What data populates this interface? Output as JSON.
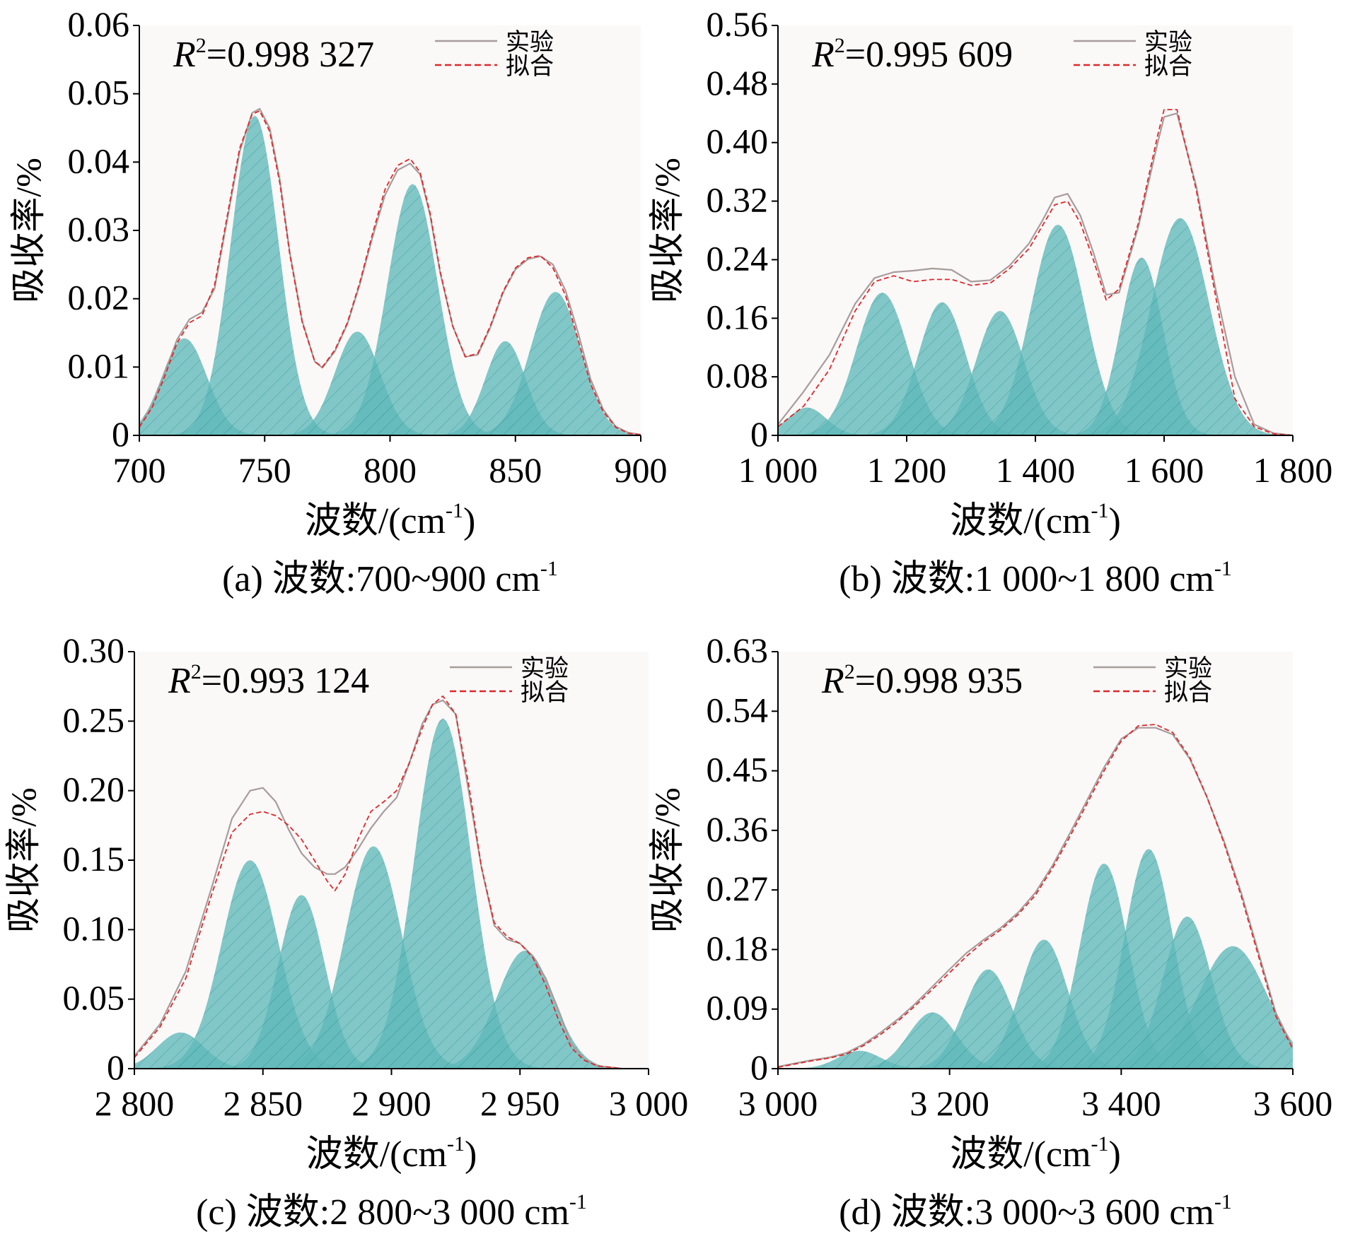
{
  "chart_data": [
    {
      "id": "a",
      "type": "area",
      "caption": "(a) 波数:700~900 cm",
      "caption_sup": "-1",
      "xlabel": "波数/(cm",
      "xlabel_sup": "-1",
      "xlabel_end": ")",
      "ylabel": "吸收率/%",
      "r2_text": "=0.998 327",
      "legend": {
        "exp": "实验",
        "fit": "拟合"
      },
      "xlim": [
        700,
        900
      ],
      "ylim": [
        0,
        0.06
      ],
      "xticks": [
        700,
        750,
        800,
        850,
        900
      ],
      "xtick_labels": [
        "700",
        "750",
        "800",
        "850",
        "900"
      ],
      "yticks": [
        0,
        0.01,
        0.02,
        0.03,
        0.04,
        0.05,
        0.06
      ],
      "ytick_labels": [
        "0",
        "0.01",
        "0.02",
        "0.03",
        "0.04",
        "0.05",
        "0.06"
      ],
      "peaks": [
        {
          "center": 718,
          "height": 0.0142,
          "sigma": 9
        },
        {
          "center": 746,
          "height": 0.0468,
          "sigma": 9.5
        },
        {
          "center": 787,
          "height": 0.0152,
          "sigma": 9
        },
        {
          "center": 809,
          "height": 0.0368,
          "sigma": 10
        },
        {
          "center": 846,
          "height": 0.0138,
          "sigma": 8
        },
        {
          "center": 866,
          "height": 0.021,
          "sigma": 10
        }
      ],
      "fit_curve": {
        "x": [
          700,
          705,
          710,
          715,
          720,
          725,
          730,
          735,
          740,
          745,
          748,
          752,
          756,
          760,
          765,
          770,
          773,
          778,
          783,
          788,
          793,
          798,
          803,
          808,
          812,
          816,
          820,
          825,
          830,
          835,
          840,
          845,
          850,
          855,
          860,
          865,
          870,
          875,
          880,
          885,
          890,
          895,
          900
        ],
        "y": [
          0.0012,
          0.004,
          0.0085,
          0.0135,
          0.0165,
          0.0175,
          0.022,
          0.032,
          0.042,
          0.047,
          0.0475,
          0.0445,
          0.037,
          0.0265,
          0.0165,
          0.0108,
          0.01,
          0.0125,
          0.0165,
          0.0225,
          0.0295,
          0.036,
          0.0395,
          0.0405,
          0.0385,
          0.0325,
          0.024,
          0.016,
          0.0115,
          0.012,
          0.016,
          0.021,
          0.0245,
          0.026,
          0.0263,
          0.0245,
          0.0205,
          0.014,
          0.0075,
          0.0035,
          0.0012,
          0.0003,
          0.0001
        ]
      },
      "exp_curve": {
        "x": [
          700,
          705,
          710,
          715,
          720,
          725,
          730,
          735,
          740,
          745,
          748,
          752,
          756,
          760,
          765,
          770,
          773,
          778,
          783,
          788,
          793,
          798,
          803,
          808,
          812,
          816,
          820,
          825,
          830,
          835,
          840,
          845,
          850,
          855,
          860,
          865,
          870,
          875,
          880,
          885,
          890,
          895,
          900
        ],
        "y": [
          0.0013,
          0.0043,
          0.009,
          0.014,
          0.017,
          0.018,
          0.0215,
          0.0315,
          0.0415,
          0.0472,
          0.0478,
          0.045,
          0.0375,
          0.0268,
          0.0167,
          0.0108,
          0.0099,
          0.0123,
          0.0163,
          0.0222,
          0.029,
          0.0352,
          0.0388,
          0.0398,
          0.0382,
          0.0322,
          0.0238,
          0.016,
          0.0115,
          0.0118,
          0.0158,
          0.0208,
          0.0243,
          0.0258,
          0.0262,
          0.025,
          0.0212,
          0.015,
          0.0082,
          0.0038,
          0.0013,
          0.0004,
          0.0001
        ]
      }
    },
    {
      "id": "b",
      "type": "area",
      "caption": "(b) 波数:1 000~1 800 cm",
      "caption_sup": "-1",
      "xlabel": "波数/(cm",
      "xlabel_sup": "-1",
      "xlabel_end": ")",
      "ylabel": "吸收率/%",
      "r2_text": "=0.995 609",
      "legend": {
        "exp": "实验",
        "fit": "拟合"
      },
      "xlim": [
        1000,
        1800
      ],
      "ylim": [
        0,
        0.56
      ],
      "xticks": [
        1000,
        1200,
        1400,
        1600,
        1800
      ],
      "xtick_labels": [
        "1 000",
        "1 200",
        "1 400",
        "1 600",
        "1 800"
      ],
      "yticks": [
        0,
        0.08,
        0.16,
        0.24,
        0.32,
        0.4,
        0.48,
        0.56
      ],
      "ytick_labels": [
        "0",
        "0.08",
        "0.16",
        "0.24",
        "0.32",
        "0.40",
        "0.48",
        "0.56"
      ],
      "peaks": [
        {
          "center": 1045,
          "height": 0.038,
          "sigma": 30
        },
        {
          "center": 1162,
          "height": 0.195,
          "sigma": 40
        },
        {
          "center": 1255,
          "height": 0.182,
          "sigma": 37
        },
        {
          "center": 1345,
          "height": 0.17,
          "sigma": 37
        },
        {
          "center": 1435,
          "height": 0.288,
          "sigma": 42
        },
        {
          "center": 1565,
          "height": 0.243,
          "sigma": 33
        },
        {
          "center": 1625,
          "height": 0.297,
          "sigma": 45
        }
      ],
      "fit_curve": {
        "x": [
          1000,
          1040,
          1080,
          1120,
          1150,
          1180,
          1210,
          1240,
          1270,
          1300,
          1330,
          1360,
          1390,
          1410,
          1430,
          1450,
          1470,
          1490,
          1510,
          1530,
          1560,
          1590,
          1600,
          1620,
          1650,
          1680,
          1710,
          1740,
          1770,
          1800
        ],
        "y": [
          0.012,
          0.04,
          0.09,
          0.17,
          0.21,
          0.218,
          0.21,
          0.213,
          0.213,
          0.205,
          0.208,
          0.228,
          0.255,
          0.285,
          0.315,
          0.32,
          0.29,
          0.24,
          0.185,
          0.2,
          0.29,
          0.41,
          0.445,
          0.445,
          0.335,
          0.19,
          0.05,
          0.012,
          0.002,
          0.0
        ]
      },
      "exp_curve": {
        "x": [
          1000,
          1040,
          1080,
          1120,
          1150,
          1180,
          1210,
          1240,
          1270,
          1300,
          1330,
          1360,
          1390,
          1410,
          1430,
          1450,
          1470,
          1490,
          1510,
          1530,
          1560,
          1590,
          1600,
          1620,
          1650,
          1680,
          1710,
          1740,
          1770,
          1800
        ],
        "y": [
          0.015,
          0.06,
          0.11,
          0.18,
          0.215,
          0.223,
          0.225,
          0.228,
          0.226,
          0.21,
          0.212,
          0.232,
          0.262,
          0.292,
          0.325,
          0.33,
          0.3,
          0.25,
          0.192,
          0.195,
          0.285,
          0.4,
          0.435,
          0.44,
          0.34,
          0.2,
          0.08,
          0.015,
          0.003,
          0.0
        ]
      }
    },
    {
      "id": "c",
      "type": "area",
      "caption": "(c) 波数:2 800~3 000 cm",
      "caption_sup": "-1",
      "xlabel": "波数/(cm",
      "xlabel_sup": "-1",
      "xlabel_end": ")",
      "ylabel": "吸收率/%",
      "r2_text": "=0.993 124",
      "legend": {
        "exp": "实验",
        "fit": "拟合"
      },
      "xlim": [
        2800,
        3000
      ],
      "ylim": [
        0,
        0.3
      ],
      "xticks": [
        2800,
        2850,
        2900,
        2950,
        3000
      ],
      "xtick_labels": [
        "2 800",
        "2 850",
        "2 900",
        "2 950",
        "3 000"
      ],
      "yticks": [
        0,
        0.05,
        0.1,
        0.15,
        0.2,
        0.25,
        0.3
      ],
      "ytick_labels": [
        "0",
        "0.05",
        "0.10",
        "0.15",
        "0.20",
        "0.25",
        "0.30"
      ],
      "peaks": [
        {
          "center": 2818,
          "height": 0.026,
          "sigma": 9
        },
        {
          "center": 2845,
          "height": 0.15,
          "sigma": 11
        },
        {
          "center": 2865,
          "height": 0.125,
          "sigma": 9
        },
        {
          "center": 2893,
          "height": 0.16,
          "sigma": 11
        },
        {
          "center": 2920,
          "height": 0.252,
          "sigma": 11
        },
        {
          "center": 2952,
          "height": 0.085,
          "sigma": 11
        }
      ],
      "fit_curve": {
        "x": [
          2800,
          2810,
          2820,
          2830,
          2838,
          2845,
          2850,
          2855,
          2860,
          2865,
          2870,
          2875,
          2878,
          2882,
          2887,
          2892,
          2897,
          2902,
          2907,
          2912,
          2916,
          2920,
          2925,
          2930,
          2935,
          2940,
          2945,
          2950,
          2955,
          2960,
          2965,
          2970,
          2975,
          2980,
          2985,
          2990,
          3000
        ],
        "y": [
          0.008,
          0.03,
          0.065,
          0.125,
          0.17,
          0.183,
          0.185,
          0.182,
          0.175,
          0.165,
          0.15,
          0.135,
          0.128,
          0.14,
          0.165,
          0.185,
          0.192,
          0.2,
          0.22,
          0.245,
          0.262,
          0.268,
          0.255,
          0.205,
          0.145,
          0.105,
          0.095,
          0.09,
          0.08,
          0.06,
          0.035,
          0.015,
          0.006,
          0.002,
          0.001,
          0.0,
          0.0
        ]
      },
      "exp_curve": {
        "x": [
          2800,
          2810,
          2820,
          2830,
          2838,
          2845,
          2850,
          2855,
          2860,
          2865,
          2870,
          2875,
          2878,
          2882,
          2887,
          2892,
          2897,
          2902,
          2907,
          2912,
          2916,
          2920,
          2925,
          2930,
          2935,
          2940,
          2945,
          2950,
          2955,
          2960,
          2965,
          2970,
          2975,
          2980,
          2985,
          2990,
          3000
        ],
        "y": [
          0.009,
          0.032,
          0.07,
          0.13,
          0.18,
          0.2,
          0.202,
          0.192,
          0.172,
          0.155,
          0.145,
          0.14,
          0.14,
          0.145,
          0.158,
          0.173,
          0.185,
          0.195,
          0.22,
          0.248,
          0.262,
          0.265,
          0.255,
          0.2,
          0.145,
          0.103,
          0.093,
          0.09,
          0.081,
          0.065,
          0.042,
          0.018,
          0.007,
          0.002,
          0.001,
          0.0,
          0.0
        ]
      }
    },
    {
      "id": "d",
      "type": "area",
      "caption": "(d) 波数:3 000~3 600 cm",
      "caption_sup": "-1",
      "xlabel": "波数/(cm",
      "xlabel_sup": "-1",
      "xlabel_end": ")",
      "ylabel": "吸收率/%",
      "r2_text": "=0.998 935",
      "legend": {
        "exp": "实验",
        "fit": "拟合"
      },
      "xlim": [
        3000,
        3600
      ],
      "ylim": [
        0,
        0.63
      ],
      "xticks": [
        3000,
        3200,
        3400,
        3600
      ],
      "xtick_labels": [
        "3 000",
        "3 200",
        "3 400",
        "3 600"
      ],
      "yticks": [
        0,
        0.09,
        0.18,
        0.27,
        0.36,
        0.45,
        0.54,
        0.63
      ],
      "ytick_labels": [
        "0",
        "0.09",
        "0.18",
        "0.27",
        "0.36",
        "0.45",
        "0.54",
        "0.63"
      ],
      "peaks": [
        {
          "center": 3095,
          "height": 0.027,
          "sigma": 25
        },
        {
          "center": 3180,
          "height": 0.085,
          "sigma": 28
        },
        {
          "center": 3245,
          "height": 0.15,
          "sigma": 28
        },
        {
          "center": 3310,
          "height": 0.195,
          "sigma": 28
        },
        {
          "center": 3380,
          "height": 0.31,
          "sigma": 28
        },
        {
          "center": 3432,
          "height": 0.332,
          "sigma": 28
        },
        {
          "center": 3477,
          "height": 0.23,
          "sigma": 28
        },
        {
          "center": 3530,
          "height": 0.185,
          "sigma": 40
        }
      ],
      "fit_curve": {
        "x": [
          3000,
          3020,
          3040,
          3060,
          3080,
          3100,
          3120,
          3140,
          3160,
          3180,
          3200,
          3220,
          3240,
          3260,
          3280,
          3300,
          3320,
          3340,
          3360,
          3380,
          3400,
          3420,
          3440,
          3460,
          3480,
          3500,
          3520,
          3540,
          3560,
          3580,
          3600
        ],
        "y": [
          0.002,
          0.007,
          0.012,
          0.016,
          0.022,
          0.035,
          0.052,
          0.072,
          0.095,
          0.12,
          0.145,
          0.17,
          0.192,
          0.21,
          0.233,
          0.262,
          0.303,
          0.35,
          0.4,
          0.45,
          0.495,
          0.518,
          0.52,
          0.508,
          0.47,
          0.41,
          0.34,
          0.26,
          0.17,
          0.08,
          0.03
        ]
      },
      "exp_curve": {
        "x": [
          3000,
          3020,
          3040,
          3060,
          3080,
          3100,
          3120,
          3140,
          3160,
          3180,
          3200,
          3220,
          3240,
          3260,
          3280,
          3300,
          3320,
          3340,
          3360,
          3380,
          3400,
          3420,
          3440,
          3460,
          3480,
          3500,
          3520,
          3540,
          3560,
          3580,
          3600
        ],
        "y": [
          0.003,
          0.008,
          0.013,
          0.017,
          0.024,
          0.037,
          0.055,
          0.075,
          0.098,
          0.124,
          0.15,
          0.175,
          0.195,
          0.213,
          0.236,
          0.266,
          0.307,
          0.355,
          0.405,
          0.455,
          0.498,
          0.515,
          0.515,
          0.505,
          0.468,
          0.41,
          0.343,
          0.265,
          0.175,
          0.085,
          0.032
        ]
      }
    }
  ],
  "colors": {
    "peak_fill": "#5fb8b8",
    "peak_edge": "#4aa3a6",
    "hatch": "#2f8a8f",
    "exp_line": "#a89c9c",
    "fit_line": "#e02828",
    "plot_bg": "#fbf8f8",
    "axis": "#000000"
  }
}
